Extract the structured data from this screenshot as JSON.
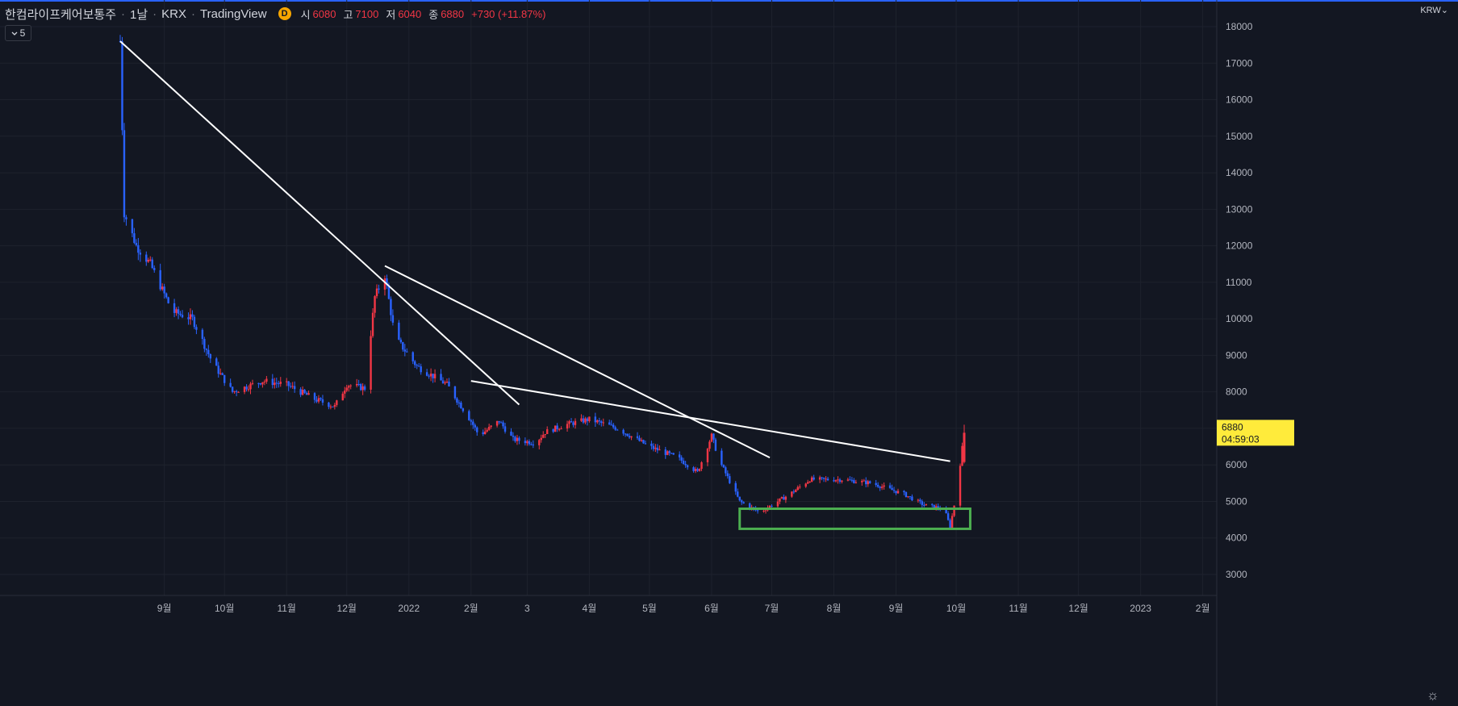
{
  "header": {
    "symbol": "한컴라이프케어보통주",
    "interval": "1날",
    "exchange": "KRX",
    "brand": "TradingView",
    "sep": "·",
    "badge": "D",
    "open_label": "시",
    "open_value": "6080",
    "high_label": "고",
    "high_value": "7100",
    "low_label": "저",
    "low_value": "6040",
    "close_label": "종",
    "close_value": "6880",
    "change": "+730 (+11.87%)"
  },
  "indicator_toggle": {
    "icon": "chevron-down-icon",
    "count": "5"
  },
  "currency_label": "KRW",
  "last_price_tag": {
    "price": "6880",
    "countdown": "04:59:03",
    "color": "#ffeb3b"
  },
  "colors": {
    "background": "#131722",
    "up": "#f23645",
    "down": "#2962ff",
    "grid": "#1e222d",
    "trendline": "#ffffff",
    "box": "#4caf50"
  },
  "y_axis": {
    "ticks": [
      "18000",
      "17000",
      "16000",
      "15000",
      "14000",
      "13000",
      "12000",
      "11000",
      "10000",
      "9000",
      "8000",
      "7000",
      "6000",
      "5000",
      "4000",
      "3000"
    ]
  },
  "x_axis": {
    "ticks": [
      "9월",
      "10월",
      "11월",
      "12월",
      "2022",
      "2월",
      "3",
      "4월",
      "5월",
      "6월",
      "7월",
      "8월",
      "9월",
      "10월",
      "11월",
      "12월",
      "2023",
      "2월"
    ]
  },
  "chart_data": {
    "type": "candlestick",
    "price_range": [
      2700,
      18400
    ],
    "price_path": [
      [
        "2021-08-10",
        17600
      ],
      [
        "2021-08-12",
        12900
      ],
      [
        "2021-08-18",
        12000
      ],
      [
        "2021-08-25",
        11500
      ],
      [
        "2021-09-05",
        10200
      ],
      [
        "2021-09-15",
        10000
      ],
      [
        "2021-09-25",
        8800
      ],
      [
        "2021-10-05",
        8000
      ],
      [
        "2021-10-20",
        8300
      ],
      [
        "2021-11-01",
        8200
      ],
      [
        "2021-11-15",
        7800
      ],
      [
        "2021-11-25",
        7600
      ],
      [
        "2021-12-01",
        8200
      ],
      [
        "2021-12-10",
        8100
      ],
      [
        "2021-12-15",
        10600
      ],
      [
        "2021-12-20",
        11200
      ],
      [
        "2021-12-25",
        9500
      ],
      [
        "2022-01-05",
        8700
      ],
      [
        "2022-01-20",
        8200
      ],
      [
        "2022-02-01",
        7200
      ],
      [
        "2022-02-05",
        6800
      ],
      [
        "2022-02-15",
        7200
      ],
      [
        "2022-02-22",
        6700
      ],
      [
        "2022-03-05",
        6600
      ],
      [
        "2022-03-10",
        6900
      ],
      [
        "2022-03-20",
        7100
      ],
      [
        "2022-04-01",
        7250
      ],
      [
        "2022-04-15",
        7000
      ],
      [
        "2022-05-01",
        6500
      ],
      [
        "2022-05-15",
        6200
      ],
      [
        "2022-05-25",
        5800
      ],
      [
        "2022-06-01",
        6800
      ],
      [
        "2022-06-05",
        6100
      ],
      [
        "2022-06-15",
        5000
      ],
      [
        "2022-06-25",
        4700
      ],
      [
        "2022-07-10",
        5200
      ],
      [
        "2022-07-20",
        5600
      ],
      [
        "2022-08-05",
        5600
      ],
      [
        "2022-08-20",
        5500
      ],
      [
        "2022-09-05",
        5200
      ],
      [
        "2022-09-15",
        4900
      ],
      [
        "2022-09-25",
        4800
      ],
      [
        "2022-09-28",
        4300
      ],
      [
        "2022-10-01",
        5200
      ],
      [
        "2022-10-05",
        6880
      ]
    ],
    "trendlines": [
      {
        "from": [
          "2021-08-10",
          17600
        ],
        "to": [
          "2022-02-25",
          7650
        ]
      },
      {
        "from": [
          "2021-12-20",
          11450
        ],
        "to": [
          "2022-06-30",
          6200
        ]
      },
      {
        "from": [
          "2022-02-01",
          8300
        ],
        "to": [
          "2022-09-28",
          6100
        ]
      }
    ],
    "support_box": {
      "from_date": "2022-06-15",
      "to_date": "2022-10-08",
      "price_low": 4250,
      "price_high": 4800
    }
  }
}
